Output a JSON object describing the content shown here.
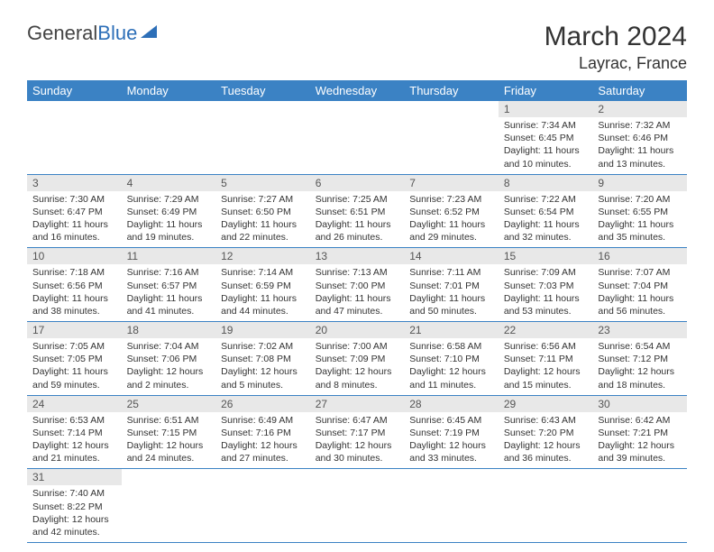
{
  "logo": {
    "text1": "General",
    "text2": "Blue"
  },
  "title": "March 2024",
  "location": "Layrac, France",
  "colors": {
    "header_bg": "#3b82c4",
    "header_fg": "#ffffff",
    "daynum_bg": "#e8e8e8",
    "border": "#3b82c4",
    "logo_accent": "#2d6fb8"
  },
  "weekdays": [
    "Sunday",
    "Monday",
    "Tuesday",
    "Wednesday",
    "Thursday",
    "Friday",
    "Saturday"
  ],
  "weeks": [
    [
      {
        "day": "",
        "sunrise": "",
        "sunset": "",
        "daylight1": "",
        "daylight2": ""
      },
      {
        "day": "",
        "sunrise": "",
        "sunset": "",
        "daylight1": "",
        "daylight2": ""
      },
      {
        "day": "",
        "sunrise": "",
        "sunset": "",
        "daylight1": "",
        "daylight2": ""
      },
      {
        "day": "",
        "sunrise": "",
        "sunset": "",
        "daylight1": "",
        "daylight2": ""
      },
      {
        "day": "",
        "sunrise": "",
        "sunset": "",
        "daylight1": "",
        "daylight2": ""
      },
      {
        "day": "1",
        "sunrise": "Sunrise: 7:34 AM",
        "sunset": "Sunset: 6:45 PM",
        "daylight1": "Daylight: 11 hours",
        "daylight2": "and 10 minutes."
      },
      {
        "day": "2",
        "sunrise": "Sunrise: 7:32 AM",
        "sunset": "Sunset: 6:46 PM",
        "daylight1": "Daylight: 11 hours",
        "daylight2": "and 13 minutes."
      }
    ],
    [
      {
        "day": "3",
        "sunrise": "Sunrise: 7:30 AM",
        "sunset": "Sunset: 6:47 PM",
        "daylight1": "Daylight: 11 hours",
        "daylight2": "and 16 minutes."
      },
      {
        "day": "4",
        "sunrise": "Sunrise: 7:29 AM",
        "sunset": "Sunset: 6:49 PM",
        "daylight1": "Daylight: 11 hours",
        "daylight2": "and 19 minutes."
      },
      {
        "day": "5",
        "sunrise": "Sunrise: 7:27 AM",
        "sunset": "Sunset: 6:50 PM",
        "daylight1": "Daylight: 11 hours",
        "daylight2": "and 22 minutes."
      },
      {
        "day": "6",
        "sunrise": "Sunrise: 7:25 AM",
        "sunset": "Sunset: 6:51 PM",
        "daylight1": "Daylight: 11 hours",
        "daylight2": "and 26 minutes."
      },
      {
        "day": "7",
        "sunrise": "Sunrise: 7:23 AM",
        "sunset": "Sunset: 6:52 PM",
        "daylight1": "Daylight: 11 hours",
        "daylight2": "and 29 minutes."
      },
      {
        "day": "8",
        "sunrise": "Sunrise: 7:22 AM",
        "sunset": "Sunset: 6:54 PM",
        "daylight1": "Daylight: 11 hours",
        "daylight2": "and 32 minutes."
      },
      {
        "day": "9",
        "sunrise": "Sunrise: 7:20 AM",
        "sunset": "Sunset: 6:55 PM",
        "daylight1": "Daylight: 11 hours",
        "daylight2": "and 35 minutes."
      }
    ],
    [
      {
        "day": "10",
        "sunrise": "Sunrise: 7:18 AM",
        "sunset": "Sunset: 6:56 PM",
        "daylight1": "Daylight: 11 hours",
        "daylight2": "and 38 minutes."
      },
      {
        "day": "11",
        "sunrise": "Sunrise: 7:16 AM",
        "sunset": "Sunset: 6:57 PM",
        "daylight1": "Daylight: 11 hours",
        "daylight2": "and 41 minutes."
      },
      {
        "day": "12",
        "sunrise": "Sunrise: 7:14 AM",
        "sunset": "Sunset: 6:59 PM",
        "daylight1": "Daylight: 11 hours",
        "daylight2": "and 44 minutes."
      },
      {
        "day": "13",
        "sunrise": "Sunrise: 7:13 AM",
        "sunset": "Sunset: 7:00 PM",
        "daylight1": "Daylight: 11 hours",
        "daylight2": "and 47 minutes."
      },
      {
        "day": "14",
        "sunrise": "Sunrise: 7:11 AM",
        "sunset": "Sunset: 7:01 PM",
        "daylight1": "Daylight: 11 hours",
        "daylight2": "and 50 minutes."
      },
      {
        "day": "15",
        "sunrise": "Sunrise: 7:09 AM",
        "sunset": "Sunset: 7:03 PM",
        "daylight1": "Daylight: 11 hours",
        "daylight2": "and 53 minutes."
      },
      {
        "day": "16",
        "sunrise": "Sunrise: 7:07 AM",
        "sunset": "Sunset: 7:04 PM",
        "daylight1": "Daylight: 11 hours",
        "daylight2": "and 56 minutes."
      }
    ],
    [
      {
        "day": "17",
        "sunrise": "Sunrise: 7:05 AM",
        "sunset": "Sunset: 7:05 PM",
        "daylight1": "Daylight: 11 hours",
        "daylight2": "and 59 minutes."
      },
      {
        "day": "18",
        "sunrise": "Sunrise: 7:04 AM",
        "sunset": "Sunset: 7:06 PM",
        "daylight1": "Daylight: 12 hours",
        "daylight2": "and 2 minutes."
      },
      {
        "day": "19",
        "sunrise": "Sunrise: 7:02 AM",
        "sunset": "Sunset: 7:08 PM",
        "daylight1": "Daylight: 12 hours",
        "daylight2": "and 5 minutes."
      },
      {
        "day": "20",
        "sunrise": "Sunrise: 7:00 AM",
        "sunset": "Sunset: 7:09 PM",
        "daylight1": "Daylight: 12 hours",
        "daylight2": "and 8 minutes."
      },
      {
        "day": "21",
        "sunrise": "Sunrise: 6:58 AM",
        "sunset": "Sunset: 7:10 PM",
        "daylight1": "Daylight: 12 hours",
        "daylight2": "and 11 minutes."
      },
      {
        "day": "22",
        "sunrise": "Sunrise: 6:56 AM",
        "sunset": "Sunset: 7:11 PM",
        "daylight1": "Daylight: 12 hours",
        "daylight2": "and 15 minutes."
      },
      {
        "day": "23",
        "sunrise": "Sunrise: 6:54 AM",
        "sunset": "Sunset: 7:12 PM",
        "daylight1": "Daylight: 12 hours",
        "daylight2": "and 18 minutes."
      }
    ],
    [
      {
        "day": "24",
        "sunrise": "Sunrise: 6:53 AM",
        "sunset": "Sunset: 7:14 PM",
        "daylight1": "Daylight: 12 hours",
        "daylight2": "and 21 minutes."
      },
      {
        "day": "25",
        "sunrise": "Sunrise: 6:51 AM",
        "sunset": "Sunset: 7:15 PM",
        "daylight1": "Daylight: 12 hours",
        "daylight2": "and 24 minutes."
      },
      {
        "day": "26",
        "sunrise": "Sunrise: 6:49 AM",
        "sunset": "Sunset: 7:16 PM",
        "daylight1": "Daylight: 12 hours",
        "daylight2": "and 27 minutes."
      },
      {
        "day": "27",
        "sunrise": "Sunrise: 6:47 AM",
        "sunset": "Sunset: 7:17 PM",
        "daylight1": "Daylight: 12 hours",
        "daylight2": "and 30 minutes."
      },
      {
        "day": "28",
        "sunrise": "Sunrise: 6:45 AM",
        "sunset": "Sunset: 7:19 PM",
        "daylight1": "Daylight: 12 hours",
        "daylight2": "and 33 minutes."
      },
      {
        "day": "29",
        "sunrise": "Sunrise: 6:43 AM",
        "sunset": "Sunset: 7:20 PM",
        "daylight1": "Daylight: 12 hours",
        "daylight2": "and 36 minutes."
      },
      {
        "day": "30",
        "sunrise": "Sunrise: 6:42 AM",
        "sunset": "Sunset: 7:21 PM",
        "daylight1": "Daylight: 12 hours",
        "daylight2": "and 39 minutes."
      }
    ],
    [
      {
        "day": "31",
        "sunrise": "Sunrise: 7:40 AM",
        "sunset": "Sunset: 8:22 PM",
        "daylight1": "Daylight: 12 hours",
        "daylight2": "and 42 minutes."
      },
      {
        "day": "",
        "sunrise": "",
        "sunset": "",
        "daylight1": "",
        "daylight2": ""
      },
      {
        "day": "",
        "sunrise": "",
        "sunset": "",
        "daylight1": "",
        "daylight2": ""
      },
      {
        "day": "",
        "sunrise": "",
        "sunset": "",
        "daylight1": "",
        "daylight2": ""
      },
      {
        "day": "",
        "sunrise": "",
        "sunset": "",
        "daylight1": "",
        "daylight2": ""
      },
      {
        "day": "",
        "sunrise": "",
        "sunset": "",
        "daylight1": "",
        "daylight2": ""
      },
      {
        "day": "",
        "sunrise": "",
        "sunset": "",
        "daylight1": "",
        "daylight2": ""
      }
    ]
  ]
}
